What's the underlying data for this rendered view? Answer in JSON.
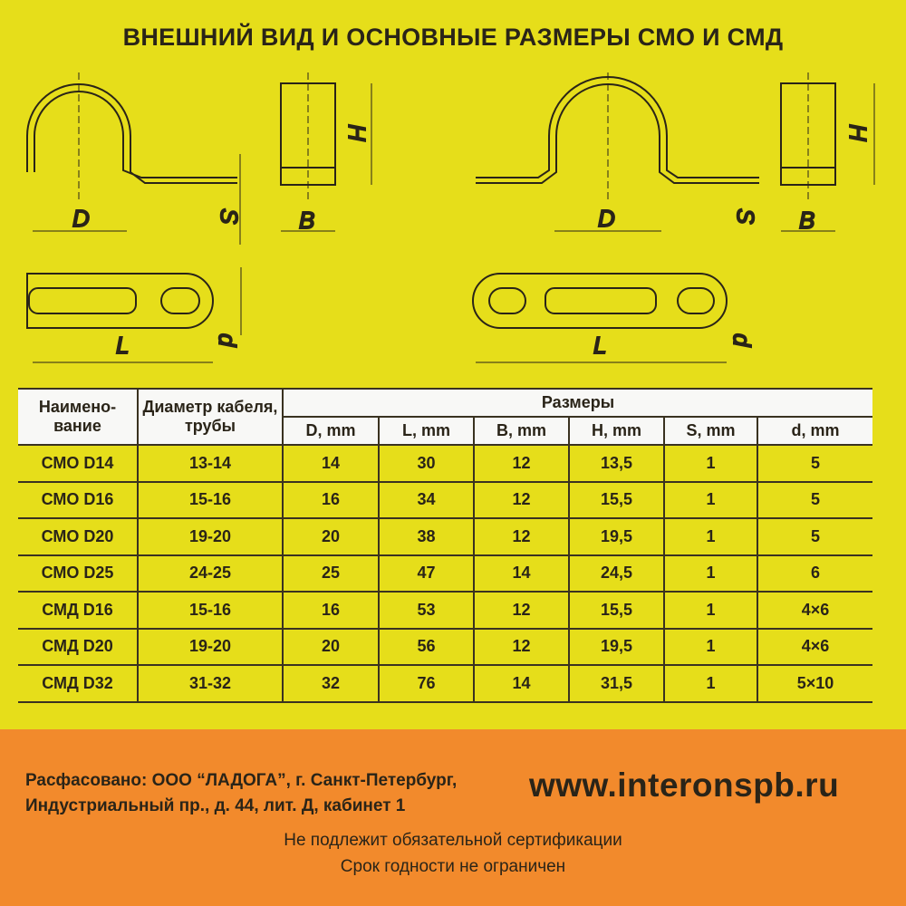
{
  "title": "ВНЕШНИЙ ВИД И ОСНОВНЫЕ РАЗМЕРЫ СМО И СМД",
  "diagram_labels": {
    "D": "D",
    "S": "S",
    "B": "B",
    "H": "H",
    "L": "L",
    "d": "d"
  },
  "table": {
    "headers": {
      "name": "Наимено-вание",
      "diameter": "Диаметр кабеля, трубы",
      "sizes": "Размеры"
    },
    "size_columns": [
      "D, mm",
      "L, mm",
      "B, mm",
      "H, mm",
      "S, mm",
      "d, mm"
    ],
    "rows": [
      [
        "СМО D14",
        "13-14",
        "14",
        "30",
        "12",
        "13,5",
        "1",
        "5"
      ],
      [
        "СМО D16",
        "15-16",
        "16",
        "34",
        "12",
        "15,5",
        "1",
        "5"
      ],
      [
        "СМО D20",
        "19-20",
        "20",
        "38",
        "12",
        "19,5",
        "1",
        "5"
      ],
      [
        "СМО D25",
        "24-25",
        "25",
        "47",
        "14",
        "24,5",
        "1",
        "6"
      ],
      [
        "СМД D16",
        "15-16",
        "16",
        "53",
        "12",
        "15,5",
        "1",
        "4×6"
      ],
      [
        "СМД D20",
        "19-20",
        "20",
        "56",
        "12",
        "19,5",
        "1",
        "4×6"
      ],
      [
        "СМД D32",
        "31-32",
        "32",
        "76",
        "14",
        "31,5",
        "1",
        "5×10"
      ]
    ]
  },
  "footer": {
    "address_line1": "Расфасовано: ООО “ЛАДОГА”, г. Санкт-Петербург,",
    "address_line2": "Индустриальный пр., д. 44, лит. Д, кабинет 1",
    "website": "www.interonspb.ru",
    "note1": "Не подлежит обязательной сертификации",
    "note2": "Срок годности не ограничен"
  },
  "colors": {
    "background": "#e6de1a",
    "footer_band": "#f28a2c",
    "header_cells": "#f8f8f6"
  }
}
